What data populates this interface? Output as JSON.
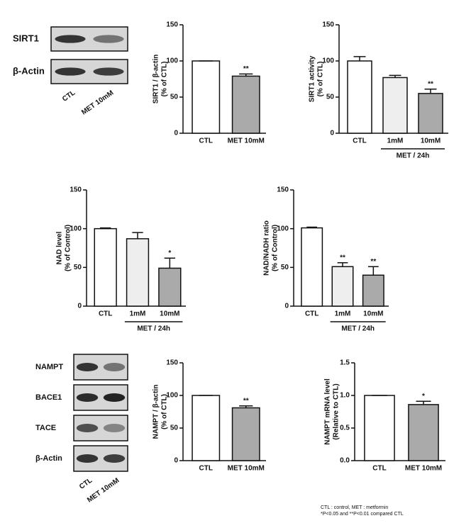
{
  "chart_data": [
    {
      "type": "bar",
      "y_label": [
        "SIRT1 / β-actin",
        "(% of CTL)"
      ],
      "categories": [
        "CTL",
        "MET 10mM"
      ],
      "values": [
        100,
        79
      ],
      "errors": [
        0,
        3
      ],
      "significance": [
        null,
        "**"
      ],
      "colors": [
        "#ffffff",
        "#aaaaaa"
      ],
      "ylim": [
        0,
        150
      ],
      "yticks": [
        0,
        50,
        100,
        150
      ]
    },
    {
      "type": "bar",
      "y_label": [
        "SIRT1 activity",
        "(% of CTL)"
      ],
      "categories": [
        "CTL",
        "1mM",
        "10mM"
      ],
      "group_label": "MET / 24h",
      "values": [
        100,
        77,
        55
      ],
      "errors": [
        6,
        3,
        6
      ],
      "significance": [
        null,
        null,
        "**"
      ],
      "colors": [
        "#ffffff",
        "#eeeeee",
        "#aaaaaa"
      ],
      "ylim": [
        0,
        150
      ],
      "yticks": [
        0,
        50,
        100,
        150
      ]
    },
    {
      "type": "bar",
      "y_label": [
        "NAD level",
        "(% of Control)"
      ],
      "categories": [
        "CTL",
        "1mM",
        "10mM"
      ],
      "group_label": "MET / 24h",
      "values": [
        100,
        87,
        49
      ],
      "errors": [
        1,
        8,
        13
      ],
      "significance": [
        null,
        null,
        "*"
      ],
      "colors": [
        "#ffffff",
        "#eeeeee",
        "#aaaaaa"
      ],
      "ylim": [
        0,
        150
      ],
      "yticks": [
        0,
        50,
        100,
        150
      ]
    },
    {
      "type": "bar",
      "y_label": [
        "NAD/NADH ratio",
        "(% of Control)"
      ],
      "categories": [
        "CTL",
        "1mM",
        "10mM"
      ],
      "group_label": "MET / 24h",
      "values": [
        101,
        51,
        40
      ],
      "errors": [
        1,
        5,
        11
      ],
      "significance": [
        null,
        "**",
        "**"
      ],
      "colors": [
        "#ffffff",
        "#eeeeee",
        "#aaaaaa"
      ],
      "ylim": [
        0,
        150
      ],
      "yticks": [
        0,
        50,
        100,
        150
      ]
    },
    {
      "type": "bar",
      "y_label": [
        "NAMPT / β-actin",
        "(% of CTL)"
      ],
      "categories": [
        "CTL",
        "MET 10mM"
      ],
      "values": [
        100,
        81
      ],
      "errors": [
        0,
        3
      ],
      "significance": [
        null,
        "**"
      ],
      "colors": [
        "#ffffff",
        "#aaaaaa"
      ],
      "ylim": [
        0,
        150
      ],
      "yticks": [
        0,
        50,
        100,
        150
      ]
    },
    {
      "type": "bar",
      "y_label": [
        "NAMPT mRNA level",
        "(Relative to CTL)"
      ],
      "categories": [
        "CTL",
        "MET 10mM"
      ],
      "values": [
        1.0,
        0.86
      ],
      "errors": [
        0,
        0.05
      ],
      "significance": [
        null,
        "*"
      ],
      "colors": [
        "#ffffff",
        "#aaaaaa"
      ],
      "ylim": [
        0,
        1.5
      ],
      "yticks": [
        {
          "value": 0,
          "label": "0.0"
        },
        {
          "value": 0.5,
          "label": "0.5"
        },
        {
          "value": 1,
          "label": "1.0"
        },
        {
          "value": 1.5,
          "label": "1.5"
        }
      ]
    }
  ],
  "blots": [
    {
      "rows": [
        "SIRT1",
        "β-Actin"
      ],
      "lanes": [
        "CTL",
        "MET 10mM"
      ]
    },
    {
      "rows": [
        "NAMPT",
        "BACE1",
        "TACE",
        "β-Actin"
      ],
      "lanes": [
        "CTL",
        "MET 10mM"
      ]
    }
  ],
  "footnote": [
    "CTL : control, MET : metformin",
    "*P<0.05 and **P<0.01 compared CTL"
  ]
}
